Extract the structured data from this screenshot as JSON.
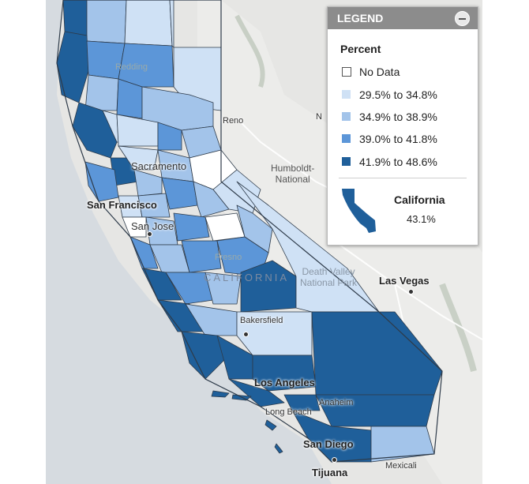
{
  "map": {
    "state_label": "CALIFORNIA",
    "park_label_line1": "Death Valley",
    "park_label_line2": "National Park",
    "forest_label_line1": "Humboldt-",
    "forest_label_line2": "National",
    "cities": {
      "san_francisco": "San Francisco",
      "sacramento": "Sacramento",
      "san_jose": "San Jose",
      "fresno": "Fresno",
      "bakersfield": "Bakersfield",
      "los_angeles": "Los Angeles",
      "long_beach": "Long Beach",
      "anaheim": "Anaheim",
      "san_diego": "San Diego",
      "tijuana": "Tijuana",
      "mexicali": "Mexicali",
      "las_vegas": "Las Vegas",
      "reno": "Reno",
      "redding": "Redding",
      "n_fragment": "N"
    },
    "colors": {
      "no_data": "#ffffff",
      "bin1": "#cfe1f5",
      "bin2": "#a3c4ea",
      "bin3": "#5c96d8",
      "bin4": "#1f5f9a",
      "border": "#2e3b4a"
    }
  },
  "legend": {
    "title": "LEGEND",
    "subtitle": "Percent",
    "items": [
      {
        "label": "No Data",
        "swatch": "nodata"
      },
      {
        "label": "29.5% to 34.8%",
        "color": "#cfe1f5"
      },
      {
        "label": "34.9% to 38.9%",
        "color": "#a3c4ea"
      },
      {
        "label": "39.0% to 41.8%",
        "color": "#5c96d8"
      },
      {
        "label": "41.9% to 48.6%",
        "color": "#1f5f9a"
      }
    ],
    "summary": {
      "name": "California",
      "value": "43.1%",
      "icon": "california-state-icon",
      "icon_color": "#1f5f9a"
    },
    "collapse_icon": "minus-circle-icon"
  }
}
